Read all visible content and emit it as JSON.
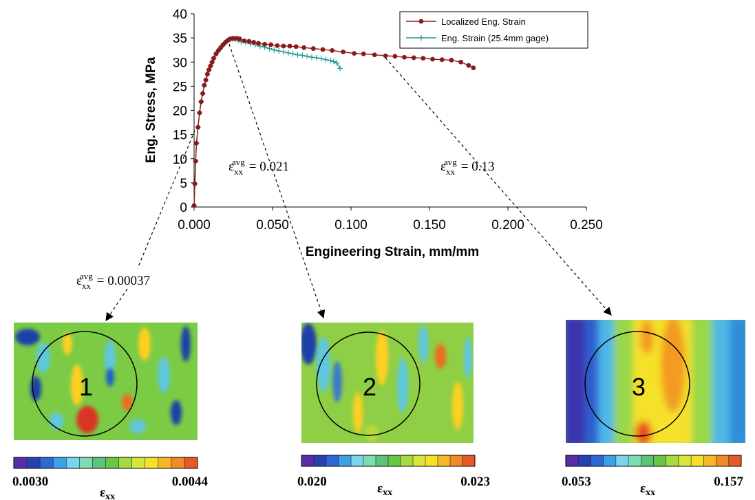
{
  "chart_data": {
    "type": "line",
    "xlabel": "Engineering Strain, mm/mm",
    "ylabel": "Eng. Stress, MPa",
    "xlim": [
      0,
      0.25
    ],
    "ylim": [
      0,
      40
    ],
    "x_ticks": [
      "0.000",
      "0.050",
      "0.100",
      "0.150",
      "0.200",
      "0.250"
    ],
    "y_ticks": [
      "0",
      "5",
      "10",
      "15",
      "20",
      "25",
      "30",
      "35",
      "40"
    ],
    "grid": false,
    "legend_position": "top-right",
    "series": [
      {
        "name": "Localized Eng. Strain",
        "color": "#8b1a1a",
        "marker": "circle",
        "points": [
          [
            0.0,
            0.3
          ],
          [
            0.0005,
            4.8
          ],
          [
            0.001,
            9.5
          ],
          [
            0.0015,
            13.2
          ],
          [
            0.0025,
            16.5
          ],
          [
            0.0035,
            19.5
          ],
          [
            0.0045,
            21.8
          ],
          [
            0.0055,
            23.5
          ],
          [
            0.0065,
            25.2
          ],
          [
            0.0075,
            26.3
          ],
          [
            0.0085,
            27.5
          ],
          [
            0.0095,
            28.4
          ],
          [
            0.0105,
            29.2
          ],
          [
            0.0115,
            30.0
          ],
          [
            0.0125,
            30.8
          ],
          [
            0.014,
            31.7
          ],
          [
            0.0155,
            32.4
          ],
          [
            0.017,
            33.0
          ],
          [
            0.0185,
            33.6
          ],
          [
            0.02,
            34.1
          ],
          [
            0.0215,
            34.5
          ],
          [
            0.023,
            34.8
          ],
          [
            0.0245,
            34.9
          ],
          [
            0.026,
            34.9
          ],
          [
            0.0275,
            34.9
          ],
          [
            0.029,
            34.8
          ],
          [
            0.032,
            34.4
          ],
          [
            0.035,
            34.3
          ],
          [
            0.038,
            34.1
          ],
          [
            0.041,
            33.9
          ],
          [
            0.045,
            33.7
          ],
          [
            0.049,
            33.6
          ],
          [
            0.053,
            33.4
          ],
          [
            0.057,
            33.3
          ],
          [
            0.061,
            33.3
          ],
          [
            0.065,
            33.2
          ],
          [
            0.07,
            33.0
          ],
          [
            0.076,
            32.8
          ],
          [
            0.082,
            32.6
          ],
          [
            0.088,
            32.4
          ],
          [
            0.095,
            32.1
          ],
          [
            0.102,
            31.8
          ],
          [
            0.108,
            31.7
          ],
          [
            0.115,
            31.5
          ],
          [
            0.122,
            31.3
          ],
          [
            0.128,
            31.2
          ],
          [
            0.134,
            31.0
          ],
          [
            0.14,
            30.9
          ],
          [
            0.146,
            30.8
          ],
          [
            0.152,
            30.6
          ],
          [
            0.158,
            30.5
          ],
          [
            0.164,
            30.4
          ],
          [
            0.17,
            30.0
          ],
          [
            0.175,
            29.3
          ],
          [
            0.178,
            28.8
          ]
        ]
      },
      {
        "name": "Eng. Strain (25.4mm gage)",
        "color": "#1e9b9b",
        "marker": "plus",
        "points": [
          [
            0.0,
            0.3
          ],
          [
            0.0005,
            4.8
          ],
          [
            0.001,
            9.5
          ],
          [
            0.0015,
            13.2
          ],
          [
            0.0025,
            16.5
          ],
          [
            0.0035,
            19.5
          ],
          [
            0.0045,
            21.8
          ],
          [
            0.0055,
            23.5
          ],
          [
            0.0065,
            25.2
          ],
          [
            0.0075,
            26.3
          ],
          [
            0.0085,
            27.5
          ],
          [
            0.0095,
            28.4
          ],
          [
            0.0105,
            29.2
          ],
          [
            0.0115,
            30.0
          ],
          [
            0.0125,
            30.8
          ],
          [
            0.014,
            31.7
          ],
          [
            0.0155,
            32.4
          ],
          [
            0.017,
            33.0
          ],
          [
            0.0185,
            33.6
          ],
          [
            0.02,
            34.1
          ],
          [
            0.0215,
            34.5
          ],
          [
            0.023,
            34.7
          ],
          [
            0.0245,
            34.8
          ],
          [
            0.026,
            34.7
          ],
          [
            0.028,
            34.5
          ],
          [
            0.03,
            34.2
          ],
          [
            0.033,
            34.0
          ],
          [
            0.036,
            33.8
          ],
          [
            0.039,
            33.6
          ],
          [
            0.042,
            33.3
          ],
          [
            0.045,
            33.1
          ],
          [
            0.048,
            32.8
          ],
          [
            0.051,
            32.5
          ],
          [
            0.054,
            32.3
          ],
          [
            0.057,
            32.1
          ],
          [
            0.06,
            31.9
          ],
          [
            0.063,
            31.7
          ],
          [
            0.066,
            31.5
          ],
          [
            0.069,
            31.4
          ],
          [
            0.072,
            31.2
          ],
          [
            0.075,
            31.0
          ],
          [
            0.078,
            30.9
          ],
          [
            0.081,
            30.7
          ],
          [
            0.084,
            30.5
          ],
          [
            0.087,
            30.3
          ],
          [
            0.089,
            30.1
          ],
          [
            0.091,
            29.8
          ],
          [
            0.093,
            28.7
          ]
        ]
      }
    ]
  },
  "annotations": [
    {
      "symbol": "ε",
      "sub": "xx",
      "sup": "avg",
      "value": "= 0.00037"
    },
    {
      "symbol": "ε",
      "sub": "xx",
      "sup": "avg",
      "value": "= 0.021"
    },
    {
      "symbol": "ε",
      "sub": "xx",
      "sup": "avg",
      "value": "= 0.13"
    }
  ],
  "strain_maps": [
    {
      "label": "1",
      "colorbar_min": "0.0030",
      "colorbar_max": "0.0044",
      "colorbar_symbol": "ε",
      "colorbar_sub": "xx",
      "background": "#7ccb45",
      "stripe_colors": [
        "#ffd021",
        "#5ec8e0",
        "#1f3fa8",
        "#ee6a23",
        "#d83420",
        "#1f60c8",
        "#9ad24a"
      ]
    },
    {
      "label": "2",
      "colorbar_min": "0.020",
      "colorbar_max": "0.023",
      "colorbar_symbol": "ε",
      "colorbar_sub": "xx",
      "background": "#8fcf45",
      "stripe_colors": [
        "#ffd021",
        "#5ec8e0",
        "#1f3fa8",
        "#ee6a23",
        "#3a7ac8",
        "#b8da38"
      ]
    },
    {
      "label": "3",
      "colorbar_min": "0.053",
      "colorbar_max": "0.157",
      "colorbar_symbol": "ε",
      "colorbar_sub": "xx",
      "background": "#74c64d",
      "stripe_colors": [
        "#3b36b0",
        "#2f5fcf",
        "#4fb8e8",
        "#98d84a",
        "#f6e12a",
        "#f39a22",
        "#e94d1f",
        "#2d8fd9"
      ]
    }
  ],
  "colorbar_colors": [
    "#5a2ca8",
    "#2a3fb0",
    "#2d68d6",
    "#3aa3e6",
    "#79d4ee",
    "#7edbb4",
    "#5cc47a",
    "#69c646",
    "#a6d942",
    "#d8e53a",
    "#f6e12a",
    "#f6b82a",
    "#f08a26",
    "#e9582a"
  ]
}
